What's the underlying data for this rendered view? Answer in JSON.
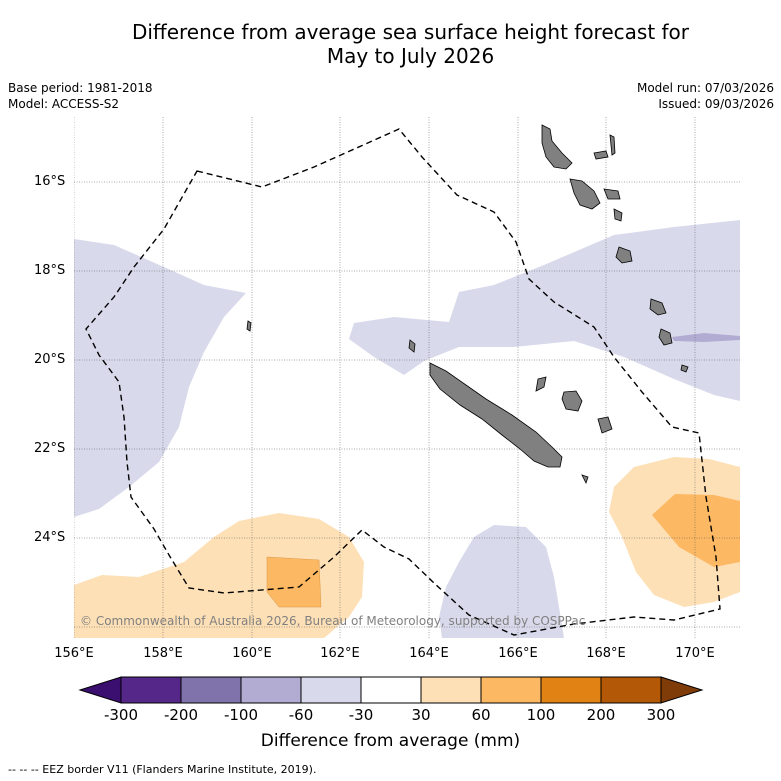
{
  "title": {
    "line1": "Difference from average sea surface height forecast for",
    "line2": "May to July 2026"
  },
  "meta": {
    "base_period": "Base period: 1981-2018",
    "model": "Model: ACCESS-S2",
    "model_run": "Model run: 07/03/2026",
    "issued": "Issued: 09/03/2026"
  },
  "map": {
    "lat_labels": [
      "16°S",
      "18°S",
      "20°S",
      "22°S",
      "24°S"
    ],
    "lon_labels": [
      "156°E",
      "158°E",
      "160°E",
      "162°E",
      "164°E",
      "166°E",
      "168°E",
      "170°E"
    ],
    "credit": "© Commonwealth of Australia 2026, Bureau of Meteorology, supported by COSPPac"
  },
  "colorbar": {
    "labels": [
      "-300",
      "-200",
      "-100",
      "-60",
      "-30",
      "30",
      "60",
      "100",
      "200",
      "300"
    ],
    "colors": [
      "#3b0f70",
      "#542788",
      "#8073ac",
      "#b2abd2",
      "#d8daeb",
      "#ffffff",
      "#fee0b6",
      "#fdb863",
      "#e08214",
      "#b35806",
      "#7f3b08"
    ],
    "title": "Difference from average (mm)"
  },
  "legend_note": "-- -- -- EEZ border V11 (Flanders Marine Institute, 2019)."
}
